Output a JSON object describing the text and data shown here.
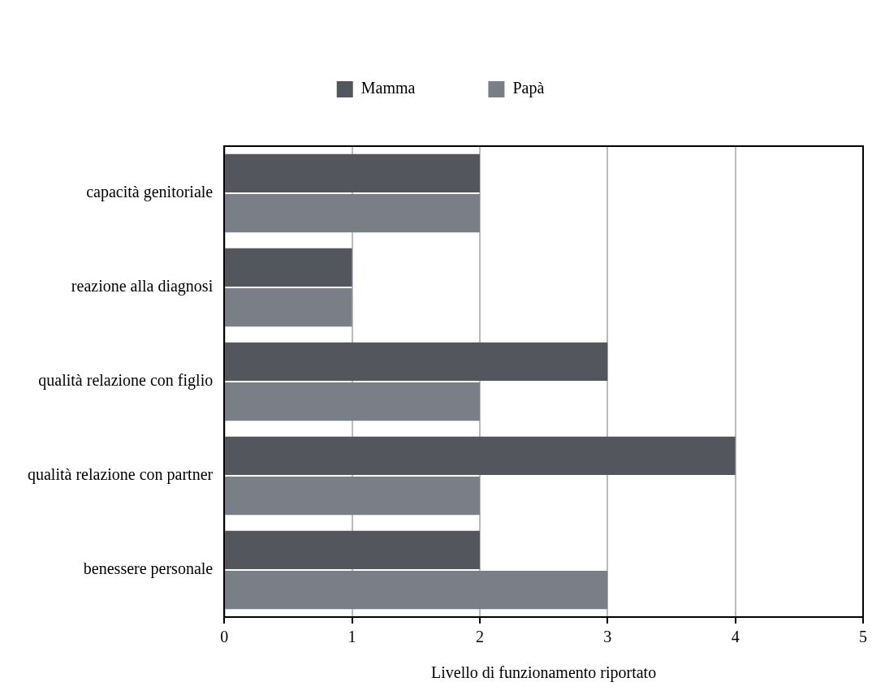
{
  "chart_data": {
    "type": "bar",
    "orientation": "horizontal",
    "xlabel": "Livello di funzionamento riportato",
    "categories": [
      "capacità genitoriale",
      "reazione alla diagnosi",
      "qualità relazione con figlio",
      "qualità relazione con partner",
      "benessere personale"
    ],
    "series": [
      {
        "name": "Mamma",
        "color": "#53565d",
        "values": [
          2,
          1,
          3,
          4,
          2
        ]
      },
      {
        "name": "Papà",
        "color": "#7a7f87",
        "values": [
          2,
          1,
          2,
          2,
          3
        ]
      }
    ],
    "xlim": [
      0,
      5
    ],
    "xticks": [
      0,
      1,
      2,
      3,
      4,
      5
    ],
    "grid": "x",
    "legend": "top"
  }
}
